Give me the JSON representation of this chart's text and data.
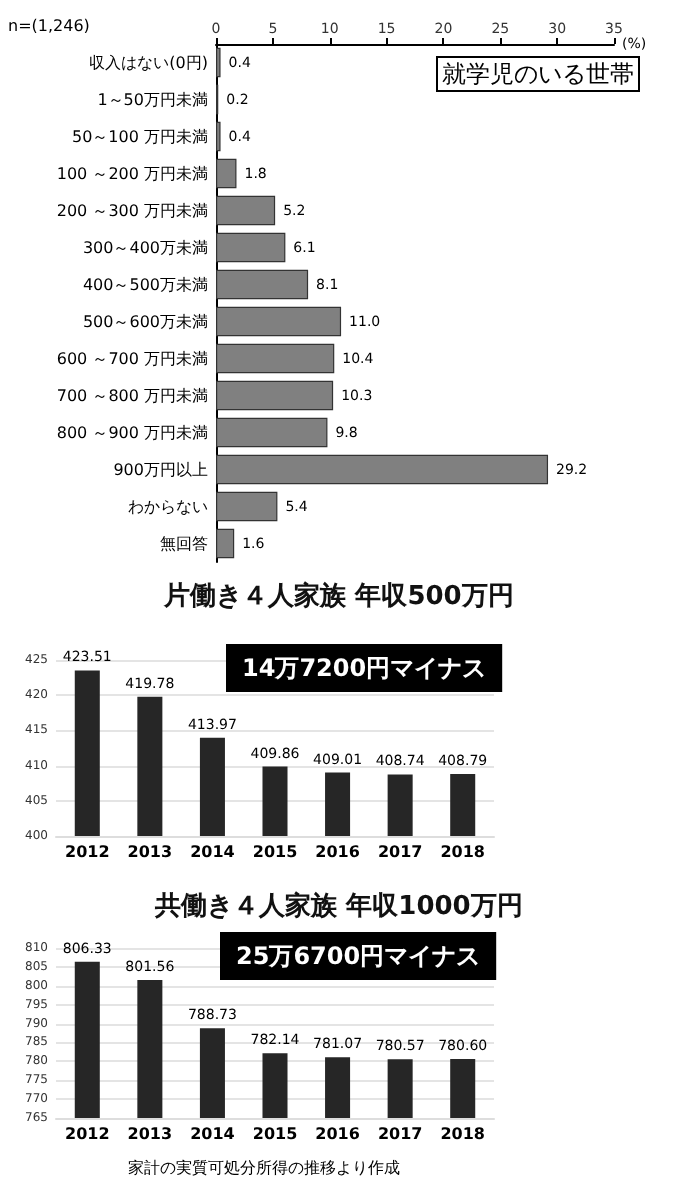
{
  "chart_data": [
    {
      "type": "bar",
      "orientation": "horizontal",
      "xlabel": "(%)",
      "annotations": [
        "n=(1,246)",
        "就学児のいる世帯"
      ],
      "categories": [
        "収入はない(0円)",
        "1～50万円未満",
        "50～100 万円未満",
        "100 ～200 万円未満",
        "200 ～300 万円未満",
        "300～400万未満",
        "400～500万未満",
        "500～600万未満",
        "600 ～700 万円未満",
        "700 ～800 万円未満",
        "800 ～900 万円未満",
        "900万円以上",
        "わからない",
        "無回答"
      ],
      "values": [
        0.4,
        0.2,
        0.4,
        1.8,
        5.2,
        6.1,
        8.1,
        11.0,
        10.4,
        10.3,
        9.8,
        29.2,
        5.4,
        1.6
      ],
      "value_labels": [
        "0.4",
        "0.2",
        "0.4",
        "1.8",
        "5.2",
        "6.1",
        "8.1",
        "11.0",
        "10.4",
        "10.3",
        "9.8",
        "29.2",
        "5.4",
        "1.6"
      ],
      "color": "#808080",
      "xlim": [
        0,
        35
      ],
      "xticks": [
        0,
        5,
        10,
        15,
        20,
        25,
        30,
        35
      ],
      "grid": false
    },
    {
      "type": "bar",
      "title": "片働き４人家族 年収500万円",
      "annotations": [
        "14万7200円マイナス"
      ],
      "categories": [
        "2012",
        "2013",
        "2014",
        "2015",
        "2016",
        "2017",
        "2018"
      ],
      "values": [
        423.51,
        419.78,
        413.97,
        409.86,
        409.01,
        408.74,
        408.79
      ],
      "data_labels": true,
      "color": "#262626",
      "ylim": [
        400,
        425
      ],
      "yticks": [
        400,
        405,
        410,
        415,
        420,
        425
      ],
      "grid": "y"
    },
    {
      "type": "bar",
      "title": "共働き４人家族 年収1000万円",
      "annotations": [
        "25万6700円マイナス",
        "家計の実質可処分所得の推移より作成"
      ],
      "categories": [
        "2012",
        "2013",
        "2014",
        "2015",
        "2016",
        "2017",
        "2018"
      ],
      "values": [
        806.33,
        801.56,
        788.73,
        782.14,
        781.07,
        780.57,
        780.6
      ],
      "value_labels": [
        "806.33",
        "801.56",
        "788.73",
        "782.14",
        "781.07",
        "780.57",
        "780.60"
      ],
      "color": "#262626",
      "ylim": [
        765,
        810
      ],
      "yticks": [
        765,
        770,
        775,
        780,
        785,
        790,
        795,
        800,
        805,
        810
      ],
      "grid": "y"
    }
  ]
}
